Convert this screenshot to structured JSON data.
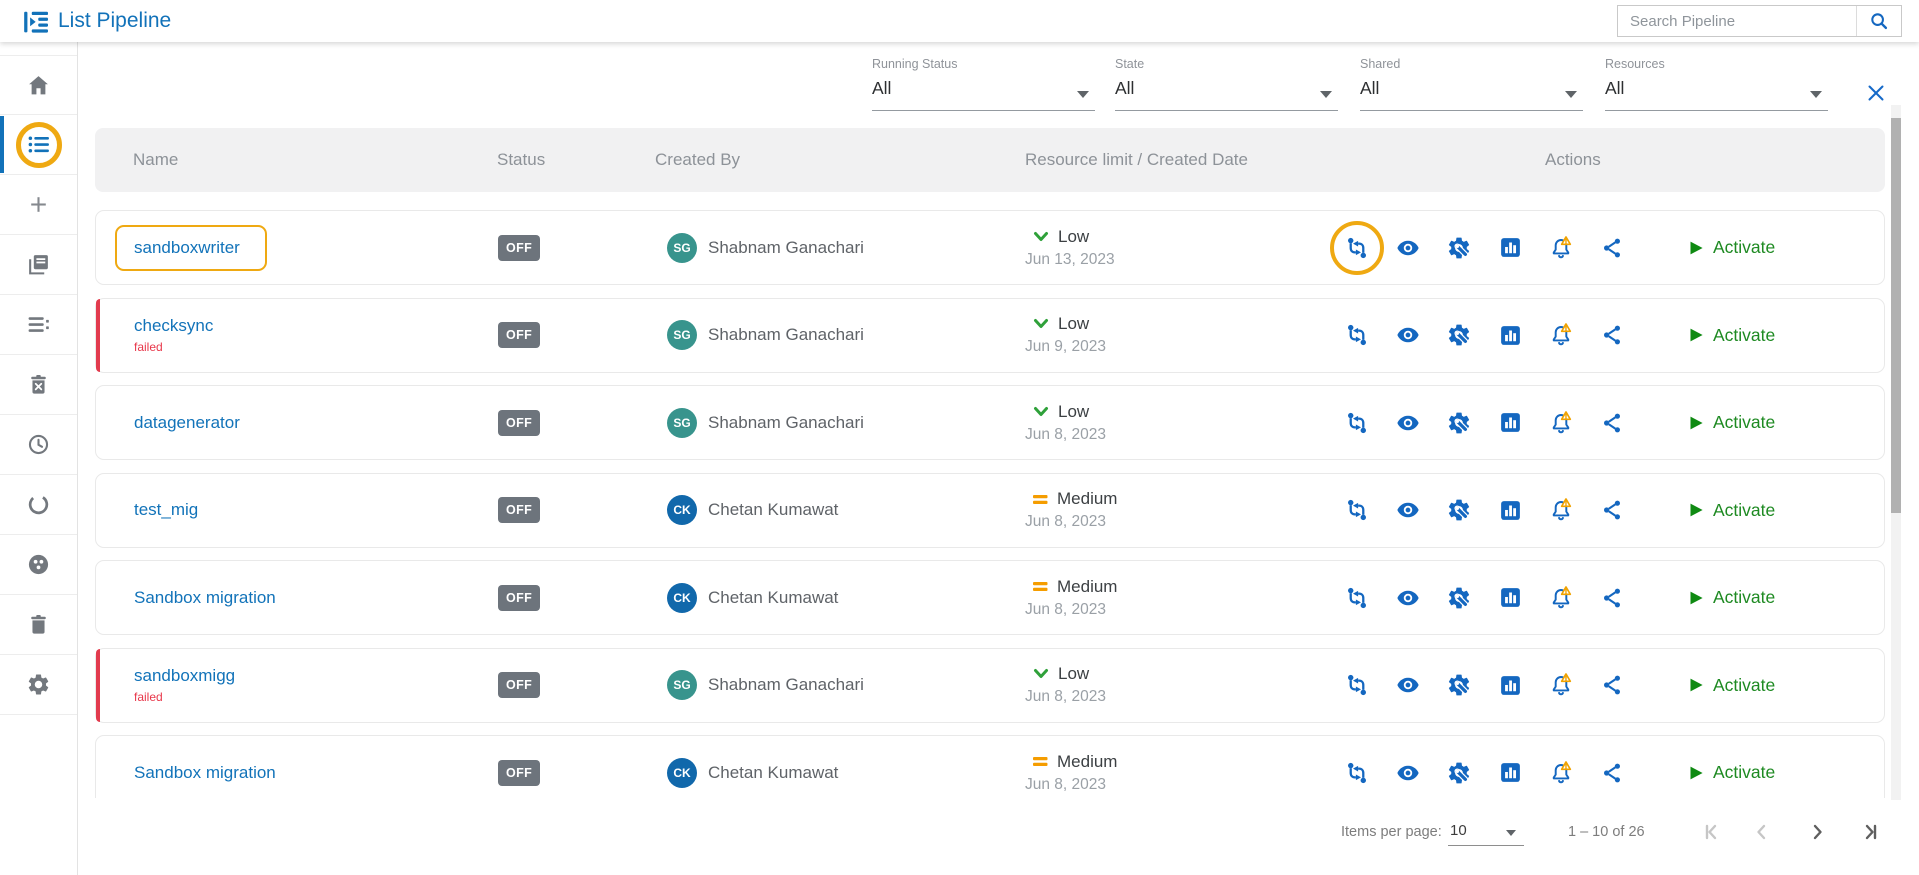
{
  "app": {
    "title": "List Pipeline"
  },
  "search": {
    "placeholder": "Search Pipeline",
    "value": ""
  },
  "filters": [
    {
      "label": "Running Status",
      "value": "All"
    },
    {
      "label": "State",
      "value": "All"
    },
    {
      "label": "Shared",
      "value": "All"
    },
    {
      "label": "Resources",
      "value": "All"
    }
  ],
  "sidebar": {
    "items": [
      "home",
      "pipeline-list",
      "add",
      "copy-stack",
      "list-details",
      "trash-clear",
      "history",
      "refresh",
      "cluster",
      "trash",
      "settings"
    ],
    "active_item": "pipeline-list",
    "annotated_item": "pipeline-list"
  },
  "table": {
    "columns": [
      "Name",
      "Status",
      "Created By",
      "Resource limit / Created Date",
      "Actions"
    ],
    "activate_label": "Activate",
    "action_icons": [
      "pipeline-flow-icon",
      "view-eye-icon",
      "configure-gear-wrench-icon",
      "analytics-bar-chart-icon",
      "alert-bell-icon",
      "share-icon"
    ],
    "rows": [
      {
        "name": "sandboxwriter",
        "failed_label": "",
        "status": "OFF",
        "initials": "SG",
        "avatar_color": "#38948d",
        "created_by": "Shabnam Ganachari",
        "resource_level": "low",
        "resource_label": "Low",
        "date": "Jun 13, 2023",
        "highlight_name": true,
        "highlight_action": true
      },
      {
        "name": "checksync",
        "failed_label": "failed",
        "status": "OFF",
        "initials": "SG",
        "avatar_color": "#38948d",
        "created_by": "Shabnam Ganachari",
        "resource_level": "low",
        "resource_label": "Low",
        "date": "Jun 9, 2023",
        "highlight_name": false,
        "highlight_action": false
      },
      {
        "name": "datagenerator",
        "failed_label": "",
        "status": "OFF",
        "initials": "SG",
        "avatar_color": "#38948d",
        "created_by": "Shabnam Ganachari",
        "resource_level": "low",
        "resource_label": "Low",
        "date": "Jun 8, 2023",
        "highlight_name": false,
        "highlight_action": false
      },
      {
        "name": "test_mig",
        "failed_label": "",
        "status": "OFF",
        "initials": "CK",
        "avatar_color": "#1168ab",
        "created_by": "Chetan Kumawat",
        "resource_level": "medium",
        "resource_label": "Medium",
        "date": "Jun 8, 2023",
        "highlight_name": false,
        "highlight_action": false
      },
      {
        "name": "Sandbox migration",
        "failed_label": "",
        "status": "OFF",
        "initials": "CK",
        "avatar_color": "#1168ab",
        "created_by": "Chetan Kumawat",
        "resource_level": "medium",
        "resource_label": "Medium",
        "date": "Jun 8, 2023",
        "highlight_name": false,
        "highlight_action": false
      },
      {
        "name": "sandboxmigg",
        "failed_label": "failed",
        "status": "OFF",
        "initials": "SG",
        "avatar_color": "#38948d",
        "created_by": "Shabnam Ganachari",
        "resource_level": "low",
        "resource_label": "Low",
        "date": "Jun 8, 2023",
        "highlight_name": false,
        "highlight_action": false
      },
      {
        "name": "Sandbox migration",
        "failed_label": "",
        "status": "OFF",
        "initials": "CK",
        "avatar_color": "#1168ab",
        "created_by": "Chetan Kumawat",
        "resource_level": "medium",
        "resource_label": "Medium",
        "date": "Jun 8, 2023",
        "highlight_name": false,
        "highlight_action": false
      }
    ]
  },
  "pagination": {
    "items_per_page_label": "Items per page:",
    "items_per_page_value": "10",
    "range": "1 – 10 of 26"
  },
  "colors": {
    "brand_blue": "#1272b9",
    "action_icon_blue": "#1467c0",
    "low_green": "#2fa13a",
    "medium_orange": "#f59d00",
    "activate_green": "#1e8a22",
    "failed_red": "#e8374a",
    "status_badge_gray": "#6d747c",
    "annotation_orange": "#efa912"
  }
}
